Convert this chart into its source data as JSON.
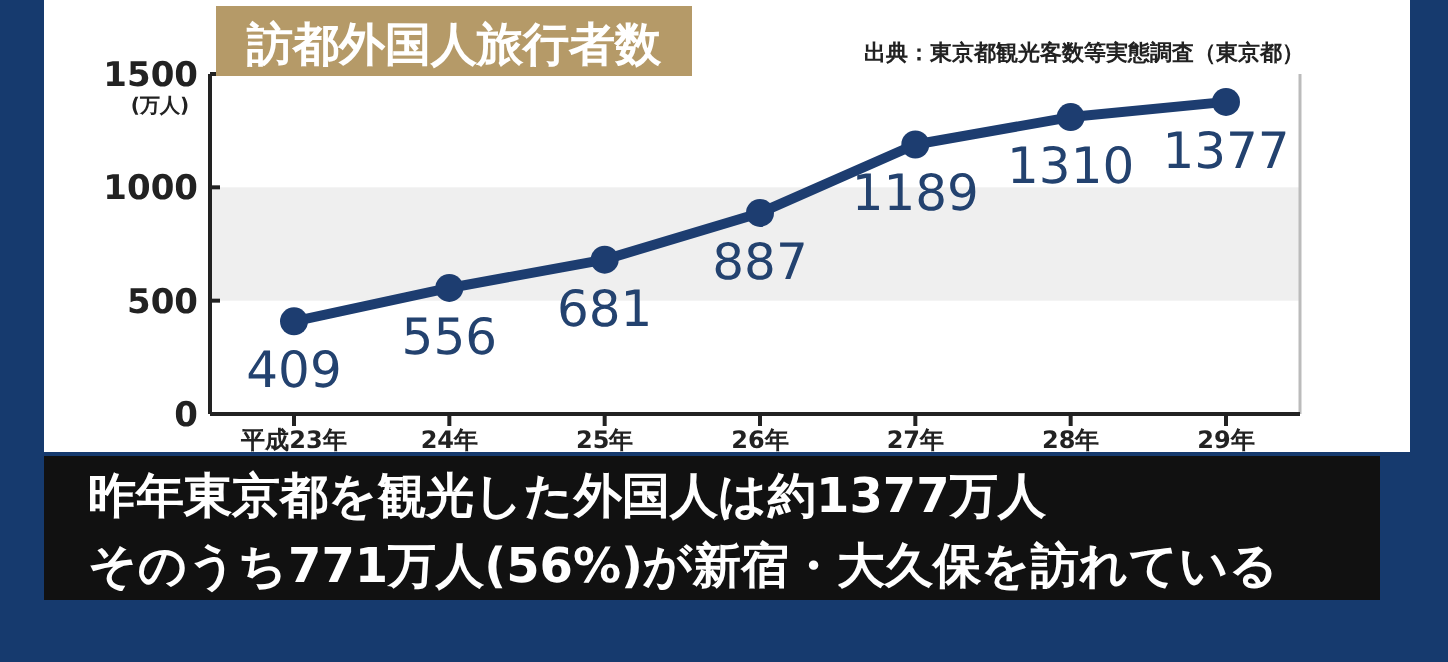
{
  "chart_data": {
    "type": "line",
    "title": "訪都外国人旅行者数",
    "ylabel": "(万人)",
    "categories": [
      "平成23年",
      "24年",
      "25年",
      "26年",
      "27年",
      "28年",
      "29年"
    ],
    "series": [
      {
        "color": "#1d3d70",
        "values": [
          409,
          556,
          681,
          887,
          1189,
          1310,
          1377
        ]
      }
    ],
    "ylim": [
      0,
      1500
    ],
    "yticks": [
      0,
      500,
      1000,
      1500
    ],
    "grid": false,
    "marker": "circle",
    "line_style": "solid",
    "data_labels": true,
    "bands": [
      {
        "axis": "y",
        "from": 500,
        "to": 1000,
        "color": "#efefef"
      }
    ],
    "annotations": [
      "出典：東京都観光客数等実態調査（東京都）",
      "昨年東京都を観光した外国人は約1377万人",
      "そのうち771万人(56%)が新宿・大久保を訪れている"
    ]
  }
}
